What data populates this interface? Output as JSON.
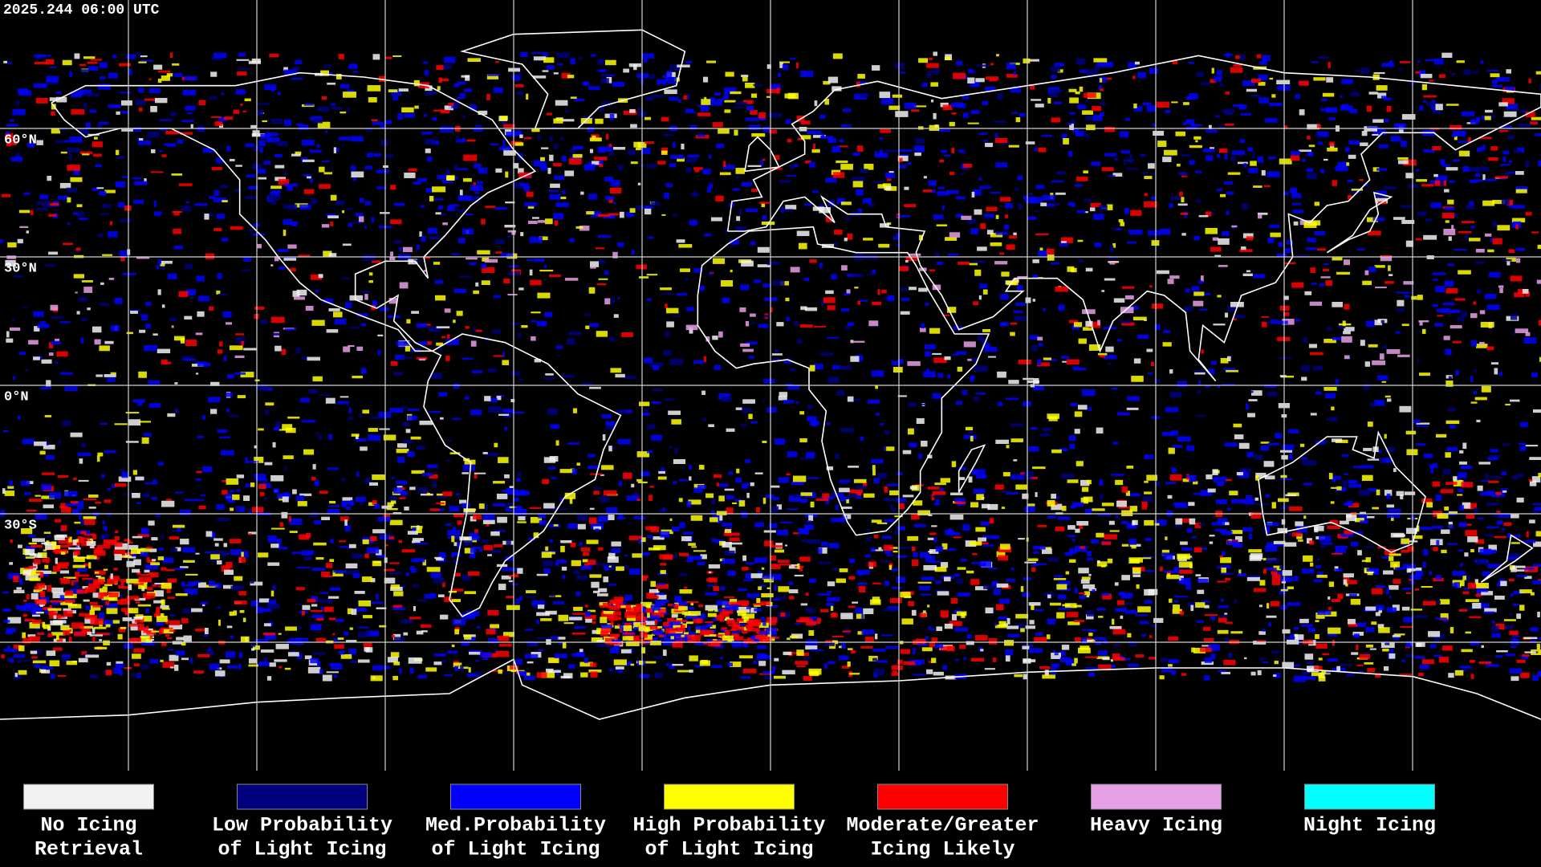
{
  "header": {
    "title": "2025.244 06:00 UTC"
  },
  "map": {
    "latitude_labels": [
      "60°N",
      "30°N",
      "0°N",
      "30°S"
    ]
  },
  "legend": [
    {
      "color": "#f2f2f2",
      "lines": [
        "No Icing",
        "Retrieval"
      ]
    },
    {
      "color": "#00007f",
      "lines": [
        "Low Probability",
        "of Light Icing"
      ]
    },
    {
      "color": "#0000ff",
      "lines": [
        "Med.Probability",
        "of Light Icing"
      ]
    },
    {
      "color": "#ffff00",
      "lines": [
        "High Probability",
        "of Light Icing"
      ]
    },
    {
      "color": "#ff0000",
      "lines": [
        "Moderate/Greater",
        "Icing Likely"
      ]
    },
    {
      "color": "#e6a0e6",
      "lines": [
        "Heavy Icing"
      ]
    },
    {
      "color": "#00ffff",
      "lines": [
        "Night Icing"
      ]
    }
  ]
}
